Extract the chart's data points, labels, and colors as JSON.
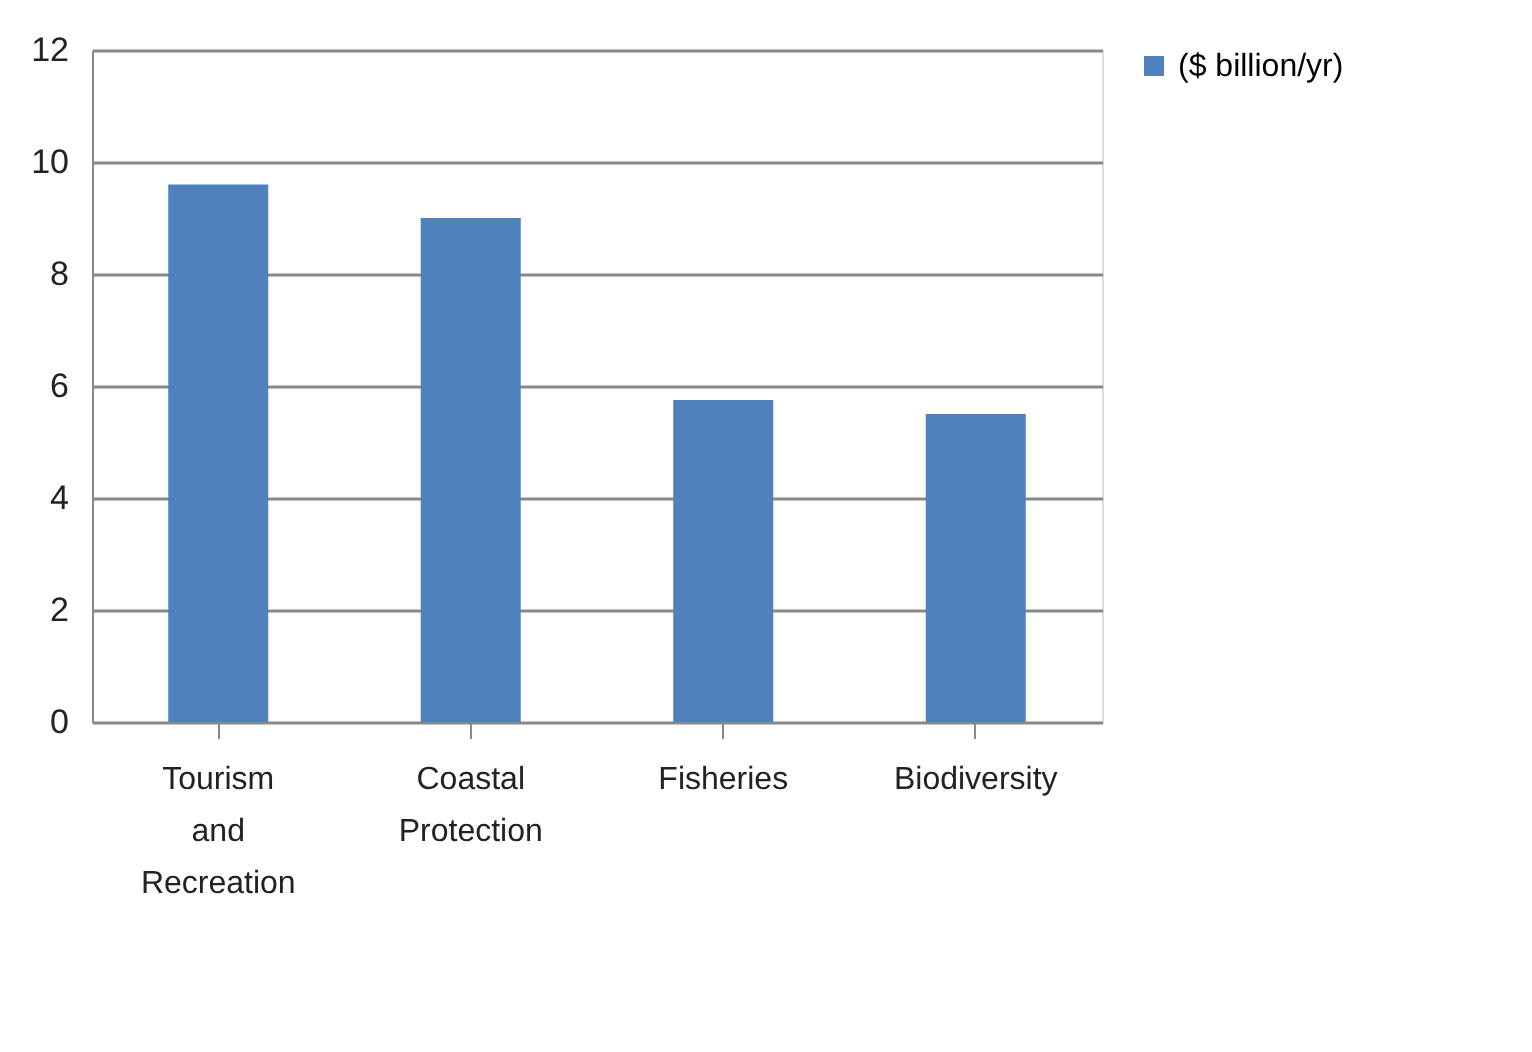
{
  "chart_data": {
    "type": "bar",
    "categories": [
      "Tourism and Recreation",
      "Coastal Protection",
      "Fisheries",
      "Biodiversity"
    ],
    "series": [
      {
        "name": "($ billion/yr)",
        "color": "#4f81bd",
        "values": [
          9.6,
          9.0,
          5.75,
          5.5
        ]
      }
    ],
    "ylim": [
      0,
      12
    ],
    "yticks": [
      0,
      2,
      4,
      6,
      8,
      10,
      12
    ],
    "grid": "y",
    "legend": "right"
  }
}
